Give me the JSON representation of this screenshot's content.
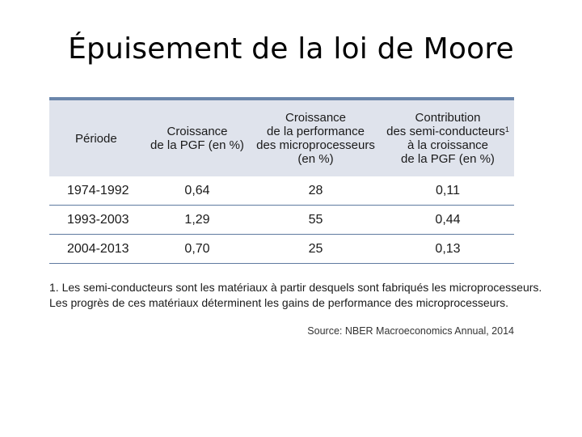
{
  "slide": {
    "title": "Épuisement de la loi de Moore"
  },
  "table": {
    "headers": {
      "period": "Période",
      "pgf": [
        "Croissance",
        "de la PGF (en %)"
      ],
      "performance": [
        "Croissance",
        "de la performance",
        "des microprocesseurs",
        "(en %)"
      ],
      "contribution": [
        "Contribution",
        "des semi-conducteurs",
        "à la croissance",
        "de la PGF (en %)"
      ],
      "contribution_note_marker": "1"
    },
    "rows": [
      {
        "period": "1974-1992",
        "pgf": "0,64",
        "performance": "28",
        "contribution": "0,11"
      },
      {
        "period": "1993-2003",
        "pgf": "1,29",
        "performance": "55",
        "contribution": "0,44"
      },
      {
        "period": "2004-2013",
        "pgf": "0,70",
        "performance": "25",
        "contribution": "0,13"
      }
    ],
    "colors": {
      "header_bg": "#dfe3ec",
      "rule": "#6b86ab"
    }
  },
  "footnote": {
    "line1": "1. Les semi-conducteurs sont les matériaux à partir desquels sont fabriqués les microprocesseurs.",
    "line2": "Les progrès de ces matériaux déterminent les gains de performance des microprocesseurs."
  },
  "source": "Source: NBER Macroeconomics Annual, 2014"
}
